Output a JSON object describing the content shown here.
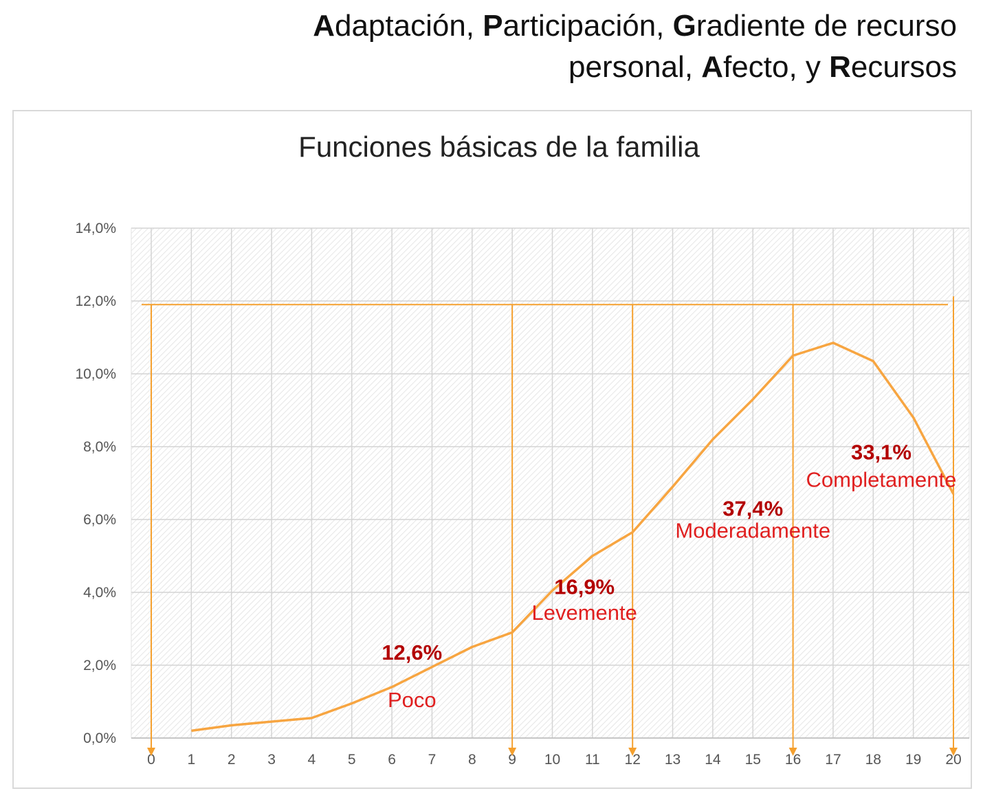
{
  "header": {
    "line1": [
      {
        "bold": "A",
        "rest": "daptación, "
      },
      {
        "bold": "P",
        "rest": "articipación, "
      },
      {
        "bold": "G",
        "rest": "radiente de recurso"
      }
    ],
    "line2": [
      {
        "bold": "",
        "rest": "personal, "
      },
      {
        "bold": "A",
        "rest": "fecto, y "
      },
      {
        "bold": "R",
        "rest": "ecursos"
      }
    ]
  },
  "colors": {
    "line": "#f7a541",
    "guide": "#f5a02e",
    "pct": "#b30000",
    "label": "#e02020"
  },
  "chart_data": {
    "type": "line",
    "title": "Funciones básicas de la familia",
    "xlabel": "",
    "ylabel": "",
    "x_ticks": [
      "0",
      "1",
      "2",
      "3",
      "4",
      "5",
      "6",
      "7",
      "8",
      "9",
      "10",
      "11",
      "12",
      "13",
      "14",
      "15",
      "16",
      "17",
      "18",
      "19",
      "20"
    ],
    "y_ticks": [
      "0,0%",
      "2,0%",
      "4,0%",
      "6,0%",
      "8,0%",
      "10,0%",
      "12,0%",
      "14,0%"
    ],
    "xlim": [
      0,
      20
    ],
    "ylim": [
      0,
      14
    ],
    "grid": true,
    "series": [
      {
        "name": "Funciones básicas de la familia",
        "x": [
          1,
          2,
          3,
          4,
          5,
          6,
          7,
          8,
          9,
          10,
          11,
          12,
          13,
          14,
          15,
          16,
          17,
          18,
          19,
          20
        ],
        "values": [
          0.2,
          0.35,
          0.45,
          0.55,
          0.95,
          1.4,
          1.95,
          2.5,
          2.9,
          4.05,
          5.0,
          5.65,
          6.9,
          8.2,
          9.3,
          10.5,
          10.85,
          10.35,
          8.8,
          6.7
        ]
      }
    ],
    "reference_level": 11.9,
    "guide_x": [
      0,
      9,
      12,
      16,
      20
    ],
    "annotations": [
      {
        "percent": "12,6%",
        "label": "Poco",
        "x": 6.5,
        "y_pct": 2.15,
        "y_lbl": 0.85
      },
      {
        "percent": "16,9%",
        "label": "Levemente",
        "x": 10.8,
        "y_pct": 3.95,
        "y_lbl": 3.25
      },
      {
        "percent": "37,4%",
        "label": "Moderadamente",
        "x": 15.0,
        "y_pct": 6.1,
        "y_lbl": 5.5
      },
      {
        "percent": "33,1%",
        "label": "Completamente",
        "x": 18.2,
        "y_pct": 7.65,
        "y_lbl": 6.9
      }
    ]
  }
}
